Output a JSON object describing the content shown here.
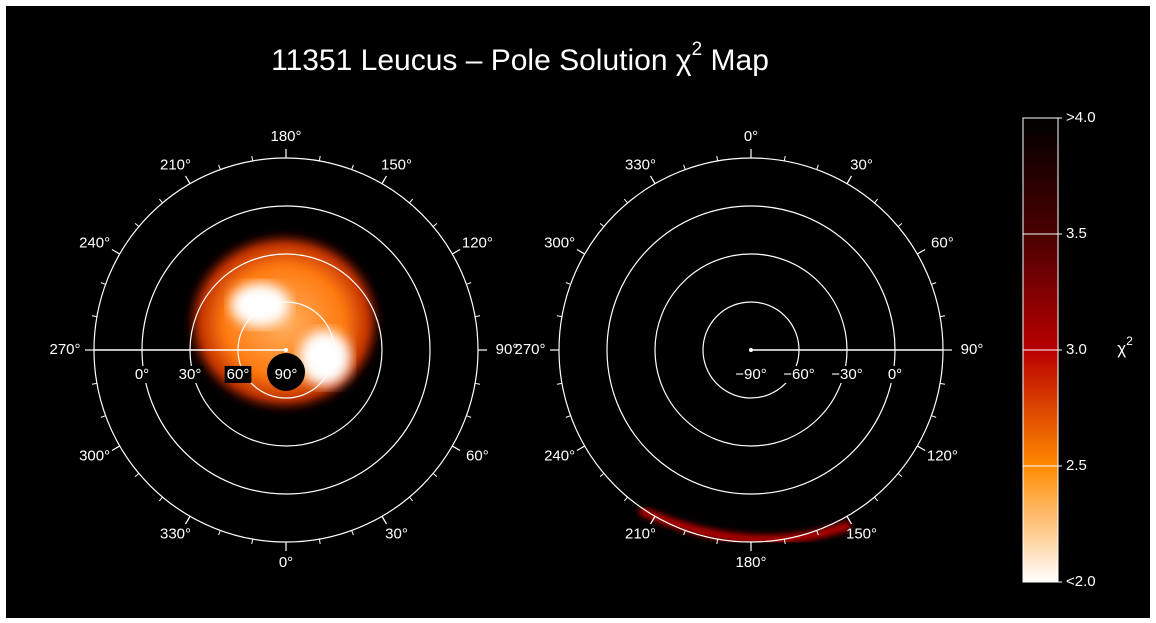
{
  "chart_data": {
    "type": "polar_map",
    "title": {
      "text": "11351 Leucus – Pole Solution χ",
      "sup": "2",
      "end": " Map"
    },
    "plots": [
      {
        "lon_zero": "bottom",
        "latlim": [
          90,
          -30
        ],
        "label_meridian": 270,
        "lon_minor_step": 10,
        "lat_ticks": [
          {
            "value": 0,
            "label": "0°"
          },
          {
            "value": 30,
            "label": "30°"
          },
          {
            "value": 60,
            "label": "60°"
          },
          {
            "value": 90,
            "label": "90°"
          }
        ],
        "lon_ticks": [
          {
            "value": 180,
            "label": "180°"
          },
          {
            "value": 150,
            "label": "150°"
          },
          {
            "value": 120,
            "label": "120°"
          },
          {
            "value": 90,
            "label": "90°"
          },
          {
            "value": 60,
            "label": "60°"
          },
          {
            "value": 30,
            "label": "30°"
          },
          {
            "value": 0,
            "label": "0°"
          },
          {
            "value": 330,
            "label": "330°"
          },
          {
            "value": 300,
            "label": "300°"
          },
          {
            "value": 270,
            "label": "270°"
          },
          {
            "value": 240,
            "label": "240°"
          },
          {
            "value": 210,
            "label": "210°"
          }
        ]
      },
      {
        "lon_zero": "top",
        "latlim": [
          -90,
          30
        ],
        "label_meridian": 90,
        "lon_minor_step": 10,
        "lat_ticks": [
          {
            "value": -90,
            "label": "−90°"
          },
          {
            "value": -60,
            "label": "−60°"
          },
          {
            "value": -30,
            "label": "−30°"
          },
          {
            "value": 0,
            "label": "0°"
          }
        ],
        "lon_ticks": [
          {
            "value": 0,
            "label": "0°"
          },
          {
            "value": 30,
            "label": "30°"
          },
          {
            "value": 60,
            "label": "60°"
          },
          {
            "value": 90,
            "label": "90°"
          },
          {
            "value": 120,
            "label": "120°"
          },
          {
            "value": 150,
            "label": "150°"
          },
          {
            "value": 180,
            "label": "180°"
          },
          {
            "value": 210,
            "label": "210°"
          },
          {
            "value": 240,
            "label": "240°"
          },
          {
            "value": 270,
            "label": "270°"
          },
          {
            "value": 300,
            "label": "300°"
          },
          {
            "value": 330,
            "label": "330°"
          }
        ]
      }
    ],
    "colorbar": {
      "label": {
        "text": "χ",
        "sup": "2"
      },
      "lim": [
        2.0,
        4.0
      ],
      "ticks": [
        {
          "value": 4.0,
          "label": ">4.0"
        },
        3.5,
        {
          "value": 3.0,
          "label": "3.0"
        },
        2.5,
        {
          "value": 2.0,
          "label": "<2.0"
        }
      ],
      "colors": [
        "#ffffff",
        "#ff8a00",
        "#b80000",
        "#4a0000",
        "#000000"
      ]
    }
  }
}
